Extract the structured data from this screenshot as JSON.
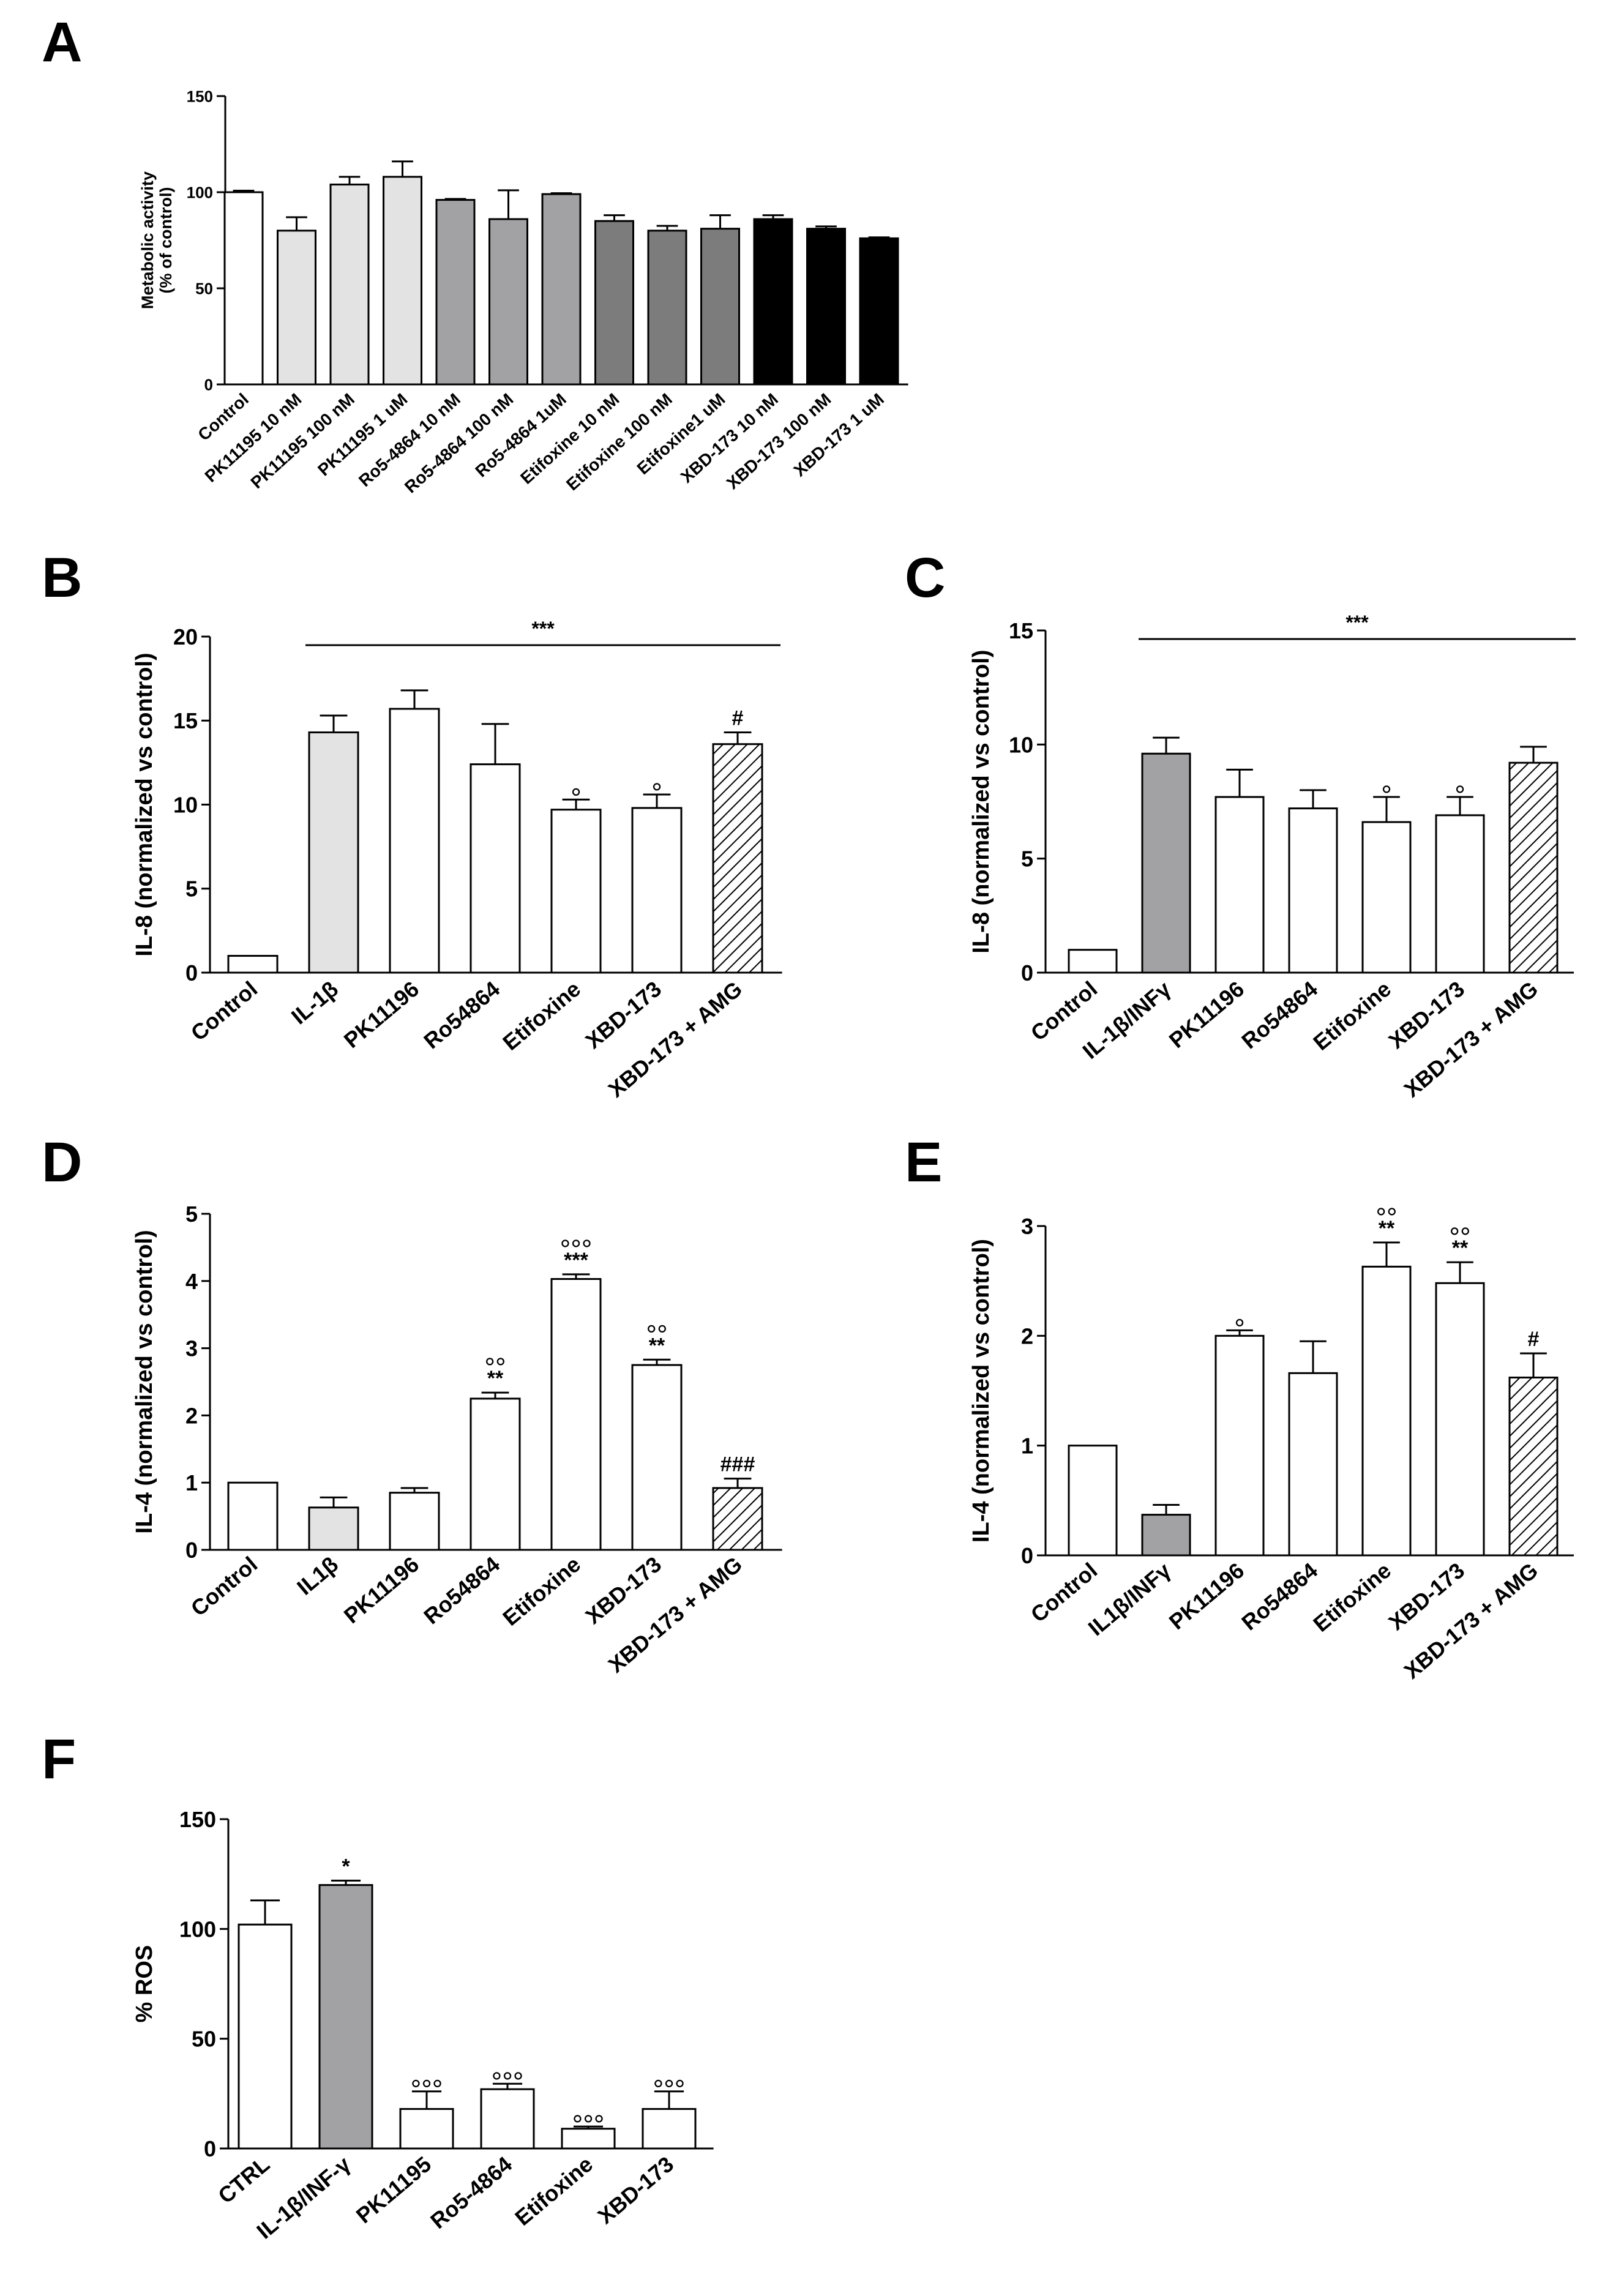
{
  "figure": {
    "description_free": true
  },
  "colors": {
    "white": "#ffffff",
    "light_gray": "#e3e3e3",
    "mid_gray": "#a2a2a5",
    "dark_gray": "#7c7c7c",
    "black": "#000000"
  },
  "chart_data": [
    {
      "panel": "A",
      "type": "bar",
      "ylabel": [
        "Metabolic activity",
        "(% of control)"
      ],
      "ylim": [
        0,
        150
      ],
      "yticks": [
        0,
        50,
        100,
        150
      ],
      "categories": [
        "Control",
        "PK11195 10 nM",
        "PK11195  100 nM",
        "PK11195  1 uM",
        "Ro5-4864 10 nM",
        "Ro5-4864 100 nM",
        "Ro5-4864 1uM",
        "Etifoxine 10 nM",
        "Etifoxine 100 nM",
        "Etifoxine1 uM",
        "XBD-173 10 nM",
        "XBD-173 100 nM",
        "XBD-173 1 uM"
      ],
      "values": [
        100,
        80,
        104,
        108,
        96,
        86,
        99,
        85,
        80,
        81,
        86,
        81,
        76
      ],
      "errors": [
        0.8,
        7,
        4,
        8,
        0.5,
        15,
        0.5,
        3,
        2.5,
        7,
        2,
        1.2,
        0.5
      ],
      "fills": [
        "white",
        "light_gray",
        "light_gray",
        "light_gray",
        "mid_gray",
        "mid_gray",
        "mid_gray",
        "dark_gray",
        "dark_gray",
        "dark_gray",
        "black",
        "black",
        "black"
      ],
      "annotations": [],
      "significance_line": null
    },
    {
      "panel": "B",
      "type": "bar",
      "ylabel": [
        "IL-8 (normalized vs control)"
      ],
      "ylim": [
        0,
        20
      ],
      "yticks": [
        0,
        5,
        10,
        15,
        20
      ],
      "categories": [
        "Control",
        "IL-1β",
        "PK11196",
        "Ro54864",
        "Etifoxine",
        "XBD-173",
        "XBD-173 + AMG"
      ],
      "values": [
        1,
        14.3,
        15.7,
        12.4,
        9.7,
        9.8,
        13.6
      ],
      "errors": [
        0,
        1.0,
        1.1,
        2.4,
        0.6,
        0.8,
        0.7
      ],
      "fills": [
        "white",
        "light_gray",
        "white",
        "white",
        "white",
        "white",
        "hatch"
      ],
      "annotations": [
        [
          "",
          ""
        ],
        [
          "",
          ""
        ],
        [
          "",
          ""
        ],
        [
          "",
          ""
        ],
        [
          "°",
          ""
        ],
        [
          "°",
          ""
        ],
        [
          "#",
          ""
        ]
      ],
      "significance_line": {
        "from": 1,
        "to": 6,
        "label": "***"
      }
    },
    {
      "panel": "C",
      "type": "bar",
      "ylabel": [
        "IL-8 (normalized vs control)"
      ],
      "ylim": [
        0,
        15
      ],
      "yticks": [
        0,
        5,
        10,
        15
      ],
      "categories": [
        "Control",
        "IL-1β/INFγ",
        "PK11196",
        "Ro54864",
        "Etifoxine",
        "XBD-173",
        "XBD-173 + AMG"
      ],
      "values": [
        1,
        9.6,
        7.7,
        7.2,
        6.6,
        6.9,
        9.2
      ],
      "errors": [
        0,
        0.7,
        1.2,
        0.8,
        1.1,
        0.8,
        0.7
      ],
      "fills": [
        "white",
        "mid_gray",
        "white",
        "white",
        "white",
        "white",
        "hatch"
      ],
      "annotations": [
        [
          "",
          ""
        ],
        [
          "",
          ""
        ],
        [
          "",
          ""
        ],
        [
          "",
          ""
        ],
        [
          "°",
          ""
        ],
        [
          "°",
          ""
        ],
        [
          "",
          ""
        ]
      ],
      "significance_line": {
        "from": 1,
        "to": 6,
        "label": "***"
      }
    },
    {
      "panel": "D",
      "type": "bar",
      "ylabel": [
        "IL-4 (normalized vs control)"
      ],
      "ylim": [
        0,
        5
      ],
      "yticks": [
        0,
        1,
        2,
        3,
        4,
        5
      ],
      "categories": [
        "Control",
        "IL1β",
        "PK11196",
        "Ro54864",
        "Etifoxine",
        "XBD-173",
        "XBD-173 + AMG"
      ],
      "values": [
        1.0,
        0.63,
        0.85,
        2.25,
        4.03,
        2.75,
        0.92
      ],
      "errors": [
        0,
        0.15,
        0.07,
        0.09,
        0.07,
        0.08,
        0.14
      ],
      "fills": [
        "white",
        "light_gray",
        "white",
        "white",
        "white",
        "white",
        "hatch"
      ],
      "annotations": [
        [
          "",
          ""
        ],
        [
          "",
          ""
        ],
        [
          "",
          ""
        ],
        [
          "°°",
          "**"
        ],
        [
          "°°°",
          "***"
        ],
        [
          "°°",
          "**"
        ],
        [
          "###",
          ""
        ]
      ],
      "significance_line": null
    },
    {
      "panel": "E",
      "type": "bar",
      "ylabel": [
        "IL-4 (normalized vs control)"
      ],
      "ylim": [
        0,
        3
      ],
      "yticks": [
        0,
        1,
        2,
        3
      ],
      "categories": [
        "Control",
        "IL1β/INFγ",
        "PK11196",
        "Ro54864",
        "Etifoxine",
        "XBD-173",
        "XBD-173 + AMG"
      ],
      "values": [
        1.0,
        0.37,
        2.0,
        1.66,
        2.63,
        2.48,
        1.62
      ],
      "errors": [
        0,
        0.09,
        0.05,
        0.29,
        0.22,
        0.19,
        0.22
      ],
      "fills": [
        "white",
        "mid_gray",
        "white",
        "white",
        "white",
        "white",
        "hatch"
      ],
      "annotations": [
        [
          "",
          ""
        ],
        [
          "",
          ""
        ],
        [
          "°",
          ""
        ],
        [
          "",
          ""
        ],
        [
          "°°",
          "**"
        ],
        [
          "°°",
          "**"
        ],
        [
          "#",
          ""
        ]
      ],
      "significance_line": null
    },
    {
      "panel": "F",
      "type": "bar",
      "ylabel": [
        "% ROS"
      ],
      "ylim": [
        0,
        150
      ],
      "yticks": [
        0,
        50,
        100,
        150
      ],
      "categories": [
        "CTRL",
        "IL-1β/INF-γ",
        "PK11195",
        "Ro5-4864",
        "Etifoxine",
        "XBD-173"
      ],
      "values": [
        102,
        120,
        18,
        27,
        9,
        18
      ],
      "errors": [
        11,
        2,
        8,
        2.5,
        1,
        8
      ],
      "fills": [
        "white",
        "mid_gray",
        "white",
        "white",
        "white",
        "white"
      ],
      "annotations": [
        [
          "",
          ""
        ],
        [
          "*",
          ""
        ],
        [
          "°°°",
          ""
        ],
        [
          "°°°",
          ""
        ],
        [
          "°°°",
          ""
        ],
        [
          "°°°",
          ""
        ]
      ],
      "significance_line": null
    }
  ]
}
